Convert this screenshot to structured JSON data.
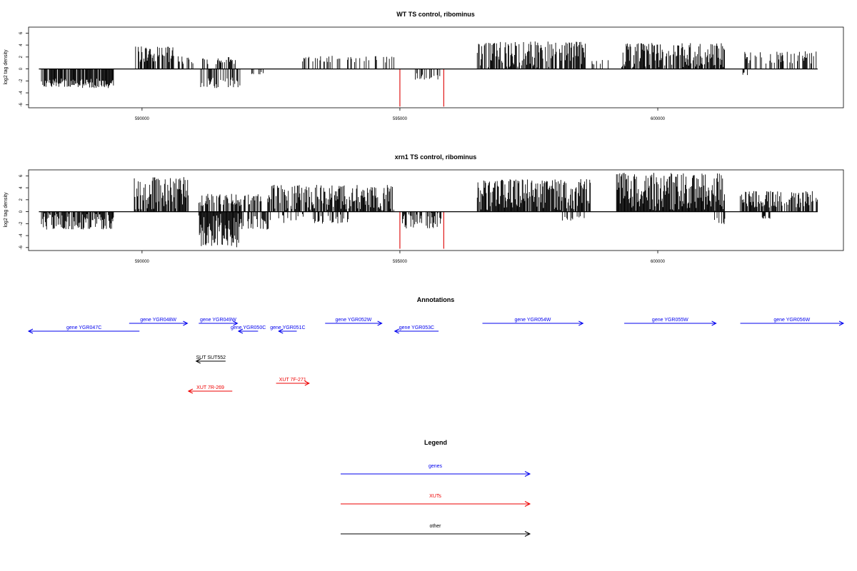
{
  "chart_data": [
    {
      "type": "bar",
      "title": "WT TS control, ribominus",
      "ylabel": "log2 tag density",
      "xlim": [
        587800,
        603600
      ],
      "ylim": [
        -6.5,
        7
      ],
      "yticks": [
        6,
        4,
        2,
        0,
        -2,
        -4,
        -6
      ],
      "xticks": [
        590000,
        595000,
        600000
      ],
      "xtick_labels": [
        "590000",
        "595000",
        "600000"
      ],
      "data_range": [
        588000,
        603100
      ],
      "highlight_bars": [
        {
          "x": 595000,
          "value": -6.3,
          "color": "#dd0000"
        },
        {
          "x": 595850,
          "value": -6.3,
          "color": "#dd0000"
        }
      ],
      "regions": [
        {
          "start": 588050,
          "end": 589450,
          "sign": -1,
          "max": 3.2,
          "density": 0.8,
          "gap": 0.5
        },
        {
          "start": 589850,
          "end": 590600,
          "sign": 1,
          "max": 3.8,
          "density": 0.7,
          "gap": 0.3
        },
        {
          "start": 590600,
          "end": 591000,
          "sign": 1,
          "max": 2.2,
          "density": 0.4,
          "gap": 0.3
        },
        {
          "start": 591100,
          "end": 591900,
          "sign": -1,
          "max": 3.2,
          "density": 0.6,
          "gap": 0.4
        },
        {
          "start": 591150,
          "end": 591850,
          "sign": 1,
          "max": 2,
          "density": 0.4,
          "gap": 0.4
        },
        {
          "start": 592100,
          "end": 592400,
          "sign": -1,
          "max": 1,
          "density": 0.2,
          "gap": 0.5
        },
        {
          "start": 593100,
          "end": 594900,
          "sign": 1,
          "max": 2.2,
          "density": 0.3,
          "gap": 0.5
        },
        {
          "start": 595300,
          "end": 595800,
          "sign": -1,
          "max": 1.8,
          "density": 0.4,
          "gap": 0.4
        },
        {
          "start": 596500,
          "end": 598600,
          "sign": 1,
          "max": 4.6,
          "density": 0.75,
          "gap": 0.05
        },
        {
          "start": 598700,
          "end": 599100,
          "sign": 1,
          "max": 1.5,
          "density": 0.3,
          "gap": 0.4
        },
        {
          "start": 599300,
          "end": 601300,
          "sign": 1,
          "max": 4.4,
          "density": 0.8,
          "gap": 0.05
        },
        {
          "start": 601600,
          "end": 603100,
          "sign": 1,
          "max": 3,
          "density": 0.4,
          "gap": 0.3
        },
        {
          "start": 601650,
          "end": 601750,
          "sign": -1,
          "max": 1.7,
          "density": 0.6,
          "gap": 0.3
        }
      ]
    },
    {
      "type": "bar",
      "title": "xrn1 TS control, ribominus",
      "ylabel": "log2 tag density",
      "xlim": [
        587800,
        603600
      ],
      "ylim": [
        -6.5,
        7
      ],
      "yticks": [
        6,
        4,
        2,
        0,
        -2,
        -4,
        -6
      ],
      "xticks": [
        590000,
        595000,
        600000
      ],
      "xtick_labels": [
        "590000",
        "595000",
        "600000"
      ],
      "data_range": [
        588000,
        603100
      ],
      "highlight_bars": [
        {
          "x": 595000,
          "value": -6.2,
          "color": "#dd0000"
        },
        {
          "x": 595850,
          "value": -6.2,
          "color": "#dd0000"
        }
      ],
      "regions": [
        {
          "start": 588050,
          "end": 589450,
          "sign": -1,
          "max": 3,
          "density": 0.9,
          "gap": 0.05
        },
        {
          "start": 589850,
          "end": 590900,
          "sign": 1,
          "max": 5.8,
          "density": 0.9,
          "gap": 0.05
        },
        {
          "start": 591100,
          "end": 591900,
          "sign": -1,
          "max": 6,
          "density": 1,
          "gap": 0.05
        },
        {
          "start": 591100,
          "end": 591900,
          "sign": 1,
          "max": 3,
          "density": 0.5,
          "gap": 0.3
        },
        {
          "start": 591900,
          "end": 592500,
          "sign": -1,
          "max": 3,
          "density": 0.6,
          "gap": 0.2
        },
        {
          "start": 591900,
          "end": 592500,
          "sign": 1,
          "max": 3,
          "density": 0.5,
          "gap": 0.3
        },
        {
          "start": 592500,
          "end": 594900,
          "sign": 1,
          "max": 4.5,
          "density": 0.85,
          "gap": 0.05
        },
        {
          "start": 592600,
          "end": 594000,
          "sign": -1,
          "max": 2,
          "density": 0.3,
          "gap": 0.2
        },
        {
          "start": 595050,
          "end": 595800,
          "sign": -1,
          "max": 2.8,
          "density": 0.7,
          "gap": 0.05
        },
        {
          "start": 596500,
          "end": 598700,
          "sign": 1,
          "max": 5.5,
          "density": 0.9,
          "gap": 0.05
        },
        {
          "start": 598100,
          "end": 598600,
          "sign": -1,
          "max": 1.5,
          "density": 0.3,
          "gap": 0.4
        },
        {
          "start": 599200,
          "end": 601300,
          "sign": 1,
          "max": 6.5,
          "density": 1,
          "gap": 0.02
        },
        {
          "start": 601100,
          "end": 601300,
          "sign": -1,
          "max": 2.2,
          "density": 0.4,
          "gap": 0.3
        },
        {
          "start": 601600,
          "end": 603100,
          "sign": 1,
          "max": 3.5,
          "density": 0.6,
          "gap": 0.2
        },
        {
          "start": 602000,
          "end": 602200,
          "sign": -1,
          "max": 1.2,
          "density": 0.5,
          "gap": 0.3
        }
      ]
    }
  ],
  "annotations": {
    "title": "Annotations",
    "features": [
      {
        "label": "gene YGR047C",
        "start": 587800,
        "end": 589950,
        "strand": "-",
        "row": 2,
        "color": "#0000ee"
      },
      {
        "label": "gene YGR048W",
        "start": 589750,
        "end": 590880,
        "strand": "+",
        "row": 1,
        "color": "#0000ee"
      },
      {
        "label": "gene YGR049W",
        "start": 591100,
        "end": 591850,
        "strand": "+",
        "row": 1,
        "color": "#0000ee"
      },
      {
        "label": "gene YGR050C",
        "start": 591870,
        "end": 592250,
        "strand": "-",
        "row": 2,
        "color": "#0000ee"
      },
      {
        "label": "gene YGR051C",
        "start": 592650,
        "end": 593000,
        "strand": "-",
        "row": 2,
        "color": "#0000ee"
      },
      {
        "label": "gene YGR052W",
        "start": 593550,
        "end": 594650,
        "strand": "+",
        "row": 1,
        "color": "#0000ee"
      },
      {
        "label": "gene YGR053C",
        "start": 594900,
        "end": 595750,
        "strand": "-",
        "row": 2,
        "color": "#0000ee"
      },
      {
        "label": "gene YGR054W",
        "start": 596600,
        "end": 598550,
        "strand": "+",
        "row": 1,
        "color": "#0000ee"
      },
      {
        "label": "gene YGR055W",
        "start": 599350,
        "end": 601130,
        "strand": "+",
        "row": 1,
        "color": "#0000ee"
      },
      {
        "label": "gene YGR056W",
        "start": 601600,
        "end": 603600,
        "strand": "+",
        "row": 1,
        "color": "#0000ee"
      },
      {
        "label": "SUT SUT552",
        "start": 591050,
        "end": 591620,
        "strand": "-",
        "row": 4,
        "color": "#000000"
      },
      {
        "label": "XUT 7F-271",
        "start": 592600,
        "end": 593240,
        "strand": "+",
        "row": 5,
        "color": "#ee0000"
      },
      {
        "label": "XUT 7R-269",
        "start": 590900,
        "end": 591750,
        "strand": "-",
        "row": 6,
        "color": "#ee0000"
      }
    ]
  },
  "legend": {
    "title": "Legend",
    "items": [
      {
        "label": "genes",
        "color": "#0000ee"
      },
      {
        "label": "XUTs",
        "color": "#ee0000"
      },
      {
        "label": "other",
        "color": "#000000"
      }
    ]
  }
}
